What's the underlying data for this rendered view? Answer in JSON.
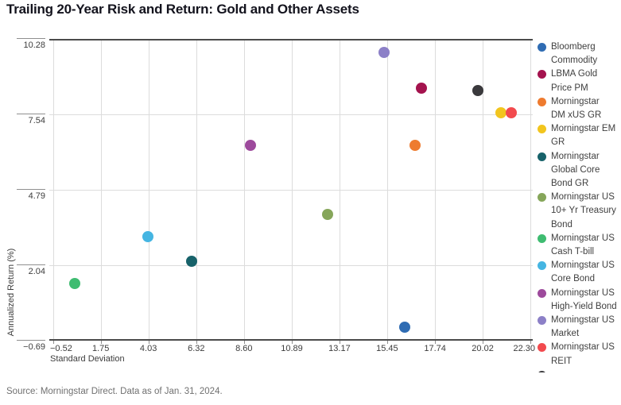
{
  "title": "Trailing 20-Year Risk and Return: Gold and Other Assets",
  "source": "Source: Morningstar Direct. Data as of Jan. 31, 2024.",
  "chart_data": {
    "type": "scatter",
    "title": "Trailing 20-Year Risk and Return: Gold and Other Assets",
    "xlabel": "Standard Deviation",
    "ylabel": "Annualized Return (%)",
    "xlim": [
      -0.52,
      22.3
    ],
    "ylim": [
      -0.69,
      10.28
    ],
    "x_ticks": [
      -0.52,
      1.75,
      4.03,
      6.32,
      8.6,
      10.89,
      13.17,
      15.45,
      17.74,
      20.02,
      22.3
    ],
    "y_ticks": [
      10.28,
      7.54,
      4.79,
      2.04,
      -0.69
    ],
    "grid": true,
    "legend_position": "right",
    "points": [
      {
        "name": "Bloomberg Commodity",
        "x": 16.3,
        "y": -0.2,
        "color": "#2f6cb3"
      },
      {
        "name": "LBMA Gold Price PM",
        "x": 17.1,
        "y": 8.5,
        "color": "#a4134e"
      },
      {
        "name": "Morningstar DM xUS GR",
        "x": 16.8,
        "y": 6.4,
        "color": "#ee7b2f"
      },
      {
        "name": "Morningstar EM GR",
        "x": 20.9,
        "y": 7.6,
        "color": "#f2c51e"
      },
      {
        "name": "Morningstar Global Core Bond GR",
        "x": 6.1,
        "y": 2.2,
        "color": "#17626a"
      },
      {
        "name": "Morningstar US 10+ Yr Treasury Bond",
        "x": 12.6,
        "y": 3.9,
        "color": "#86a65a"
      },
      {
        "name": "Morningstar US Cash T-bill",
        "x": 0.5,
        "y": 1.4,
        "color": "#3fbc71"
      },
      {
        "name": "Morningstar US Core Bond",
        "x": 4.0,
        "y": 3.1,
        "color": "#45b5e2"
      },
      {
        "name": "Morningstar US High-Yield Bond",
        "x": 8.9,
        "y": 6.4,
        "color": "#9d4a9c"
      },
      {
        "name": "Morningstar US Market",
        "x": 15.3,
        "y": 9.8,
        "color": "#8c80c7"
      },
      {
        "name": "Morningstar US REIT",
        "x": 21.4,
        "y": 7.6,
        "color": "#f24a4e"
      },
      {
        "name": "",
        "x": 19.8,
        "y": 8.4,
        "color": "#3a393c"
      }
    ],
    "legend": [
      {
        "label": "Bloomberg Commodity",
        "lines": [
          "Bloomberg",
          "Commodity"
        ],
        "color": "#2f6cb3"
      },
      {
        "label": "LBMA Gold Price PM",
        "lines": [
          "LBMA Gold",
          "Price PM"
        ],
        "color": "#a4134e"
      },
      {
        "label": "Morningstar DM xUS GR",
        "lines": [
          "Morningstar",
          "DM xUS GR"
        ],
        "color": "#ee7b2f"
      },
      {
        "label": "Morningstar EM GR",
        "lines": [
          "Morningstar EM",
          "GR"
        ],
        "color": "#f2c51e"
      },
      {
        "label": "Morningstar Global Core Bond GR",
        "lines": [
          "Morningstar",
          "Global Core",
          "Bond GR"
        ],
        "color": "#17626a"
      },
      {
        "label": "Morningstar US 10+ Yr Treasury Bond",
        "lines": [
          "Morningstar US",
          "10+ Yr Treasury",
          "Bond"
        ],
        "color": "#86a65a"
      },
      {
        "label": "Morningstar US Cash T-bill",
        "lines": [
          "Morningstar US",
          "Cash T-bill"
        ],
        "color": "#3fbc71"
      },
      {
        "label": "Morningstar US Core Bond",
        "lines": [
          "Morningstar US",
          "Core Bond"
        ],
        "color": "#45b5e2"
      },
      {
        "label": "Morningstar US High-Yield Bond",
        "lines": [
          "Morningstar US",
          "High-Yield Bond"
        ],
        "color": "#9d4a9c"
      },
      {
        "label": "Morningstar US Market",
        "lines": [
          "Morningstar US",
          "Market"
        ],
        "color": "#8c80c7"
      },
      {
        "label": "Morningstar US REIT",
        "lines": [
          "Morningstar US",
          "REIT"
        ],
        "color": "#f24a4e"
      },
      {
        "label": "",
        "lines": [],
        "color": "#3a393c"
      }
    ]
  }
}
